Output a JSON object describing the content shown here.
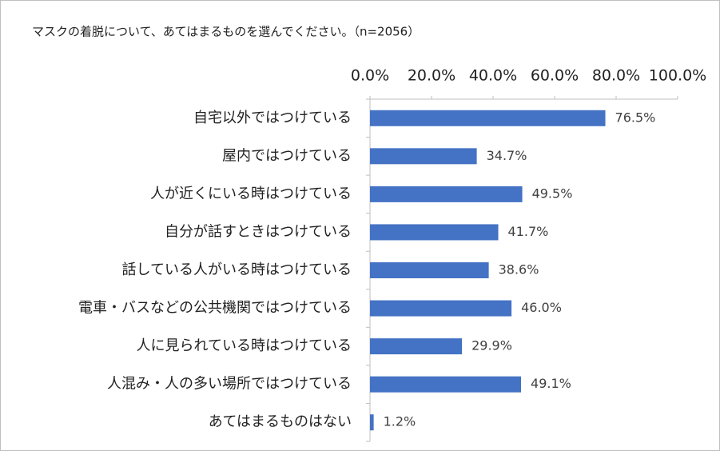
{
  "chart_data": {
    "type": "bar",
    "orientation": "horizontal",
    "title": "マスクの着脱について、あてはまるものを選んでください。（n=2056）",
    "categories": [
      "自宅以外ではつけている",
      "屋内ではつけている",
      "人が近くにいる時はつけている",
      "自分が話すときはつけている",
      "話している人がいる時はつけている",
      "電車・バスなどの公共機関ではつけている",
      "人に見られている時はつけている",
      "人混み・人の多い場所ではつけている",
      "あてはまるものはない"
    ],
    "values": [
      76.5,
      34.7,
      49.5,
      41.7,
      38.6,
      46.0,
      29.9,
      49.1,
      1.2
    ],
    "value_labels": [
      "76.5%",
      "34.7%",
      "49.5%",
      "41.7%",
      "38.6%",
      "46.0%",
      "29.9%",
      "49.1%",
      "1.2%"
    ],
    "color": "#4472c4",
    "xlim": [
      0,
      100
    ],
    "xticks": [
      {
        "value": 0,
        "label": "0.0%"
      },
      {
        "value": 20,
        "label": "20.0%"
      },
      {
        "value": 40,
        "label": "40.0%"
      },
      {
        "value": 60,
        "label": "60.0%"
      },
      {
        "value": 80,
        "label": "80.0%"
      },
      {
        "value": 100,
        "label": "100.0%"
      }
    ],
    "grid": false
  }
}
